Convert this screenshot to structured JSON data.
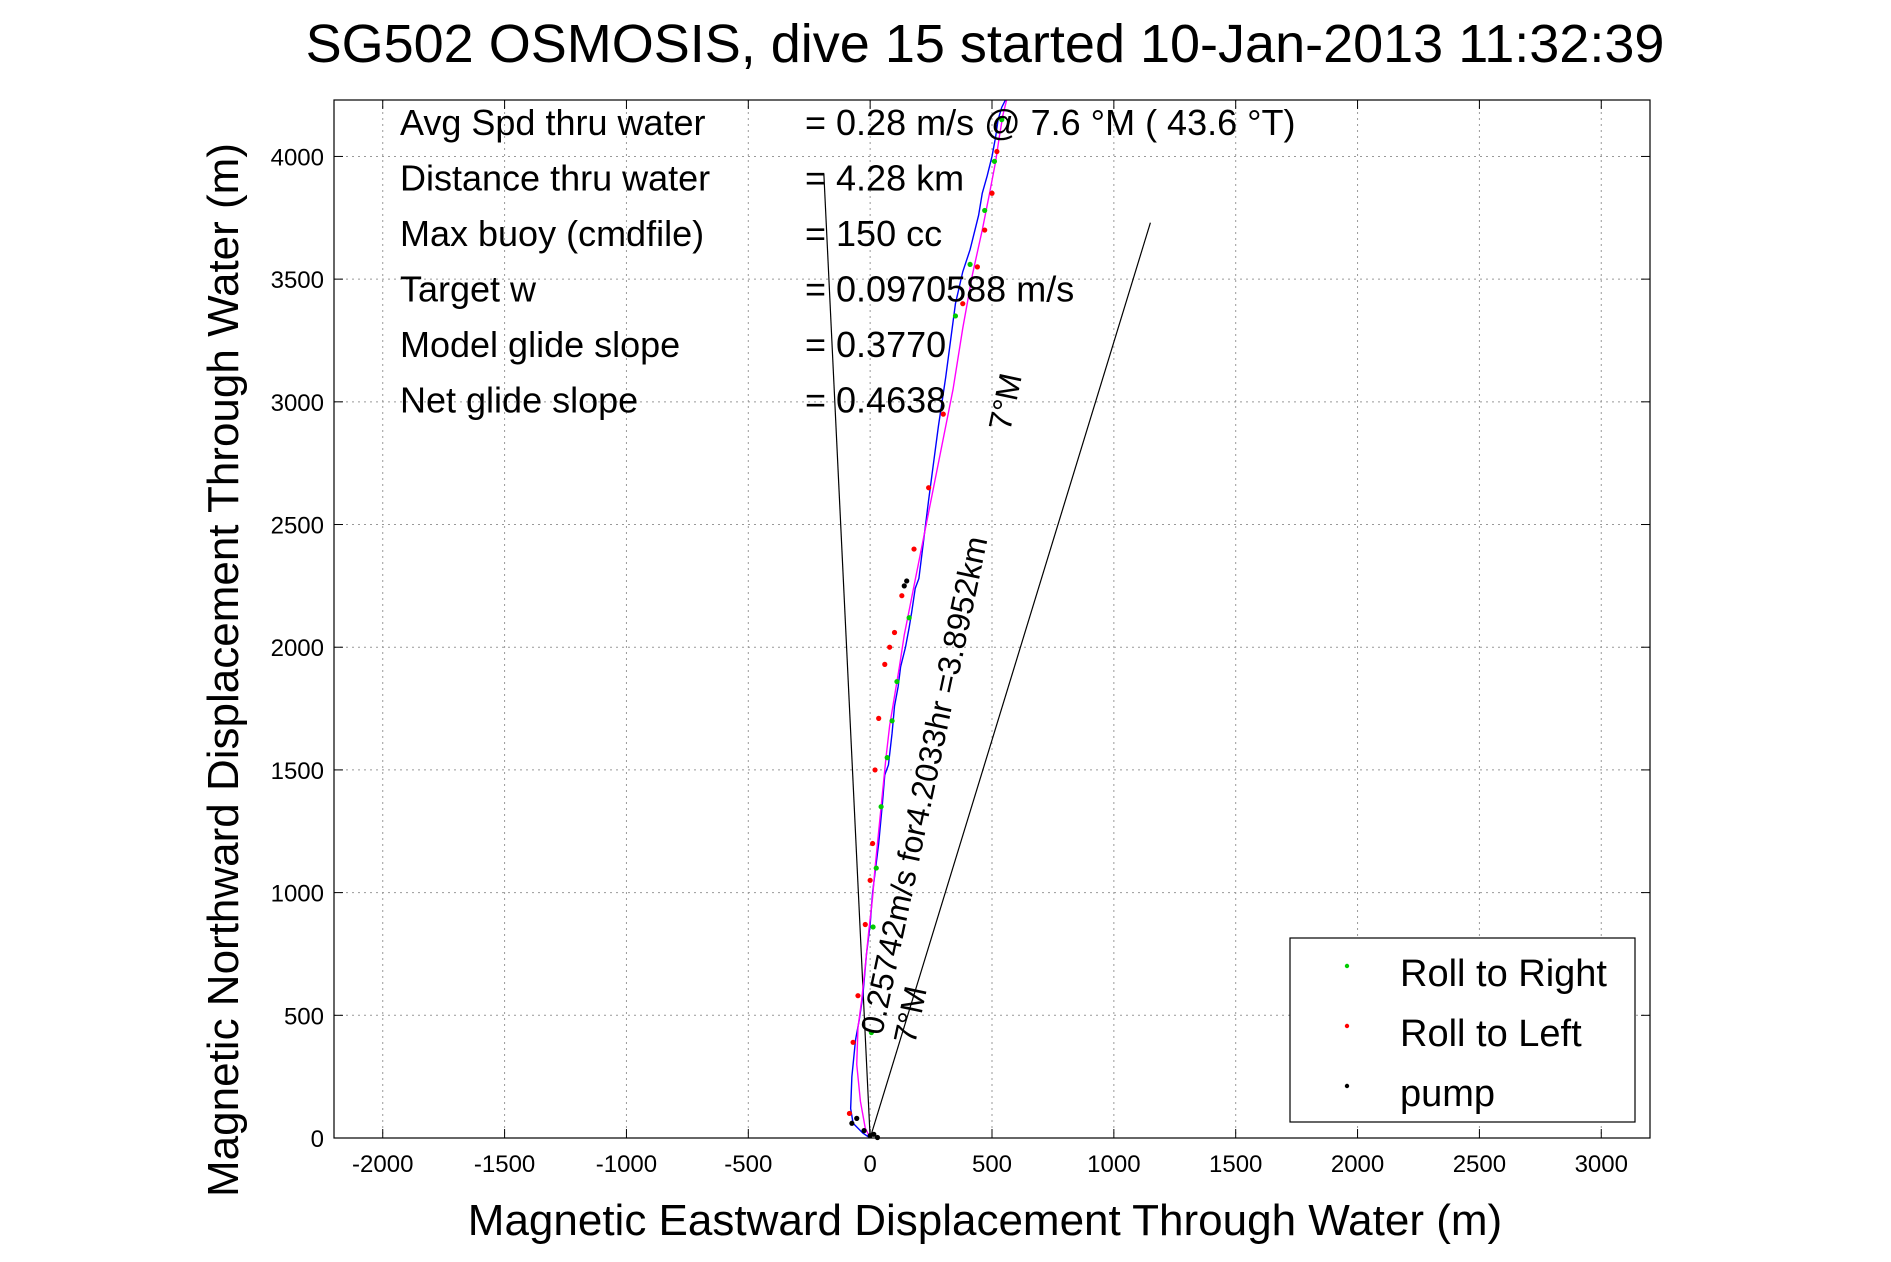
{
  "chart_data": {
    "type": "line",
    "title": "SG502 OSMOSIS, dive 15 started 10-Jan-2013 11:32:39",
    "xlabel": "Magnetic Eastward Displacement Through Water (m)",
    "ylabel": "Magnetic Northward Displacement Through Water (m)",
    "xlim": [
      -2200,
      3200
    ],
    "ylim": [
      0,
      4230
    ],
    "xticks": [
      -2000,
      -1500,
      -1000,
      -500,
      0,
      500,
      1000,
      1500,
      2000,
      2500,
      3000
    ],
    "yticks": [
      0,
      500,
      1000,
      1500,
      2000,
      2500,
      3000,
      3500,
      4000
    ],
    "grid": true,
    "legend_position": "bottom-right",
    "legend": [
      {
        "label": "Roll to Right",
        "color": "#00cc00"
      },
      {
        "label": "Roll to Left",
        "color": "#ff0000"
      },
      {
        "label": "pump",
        "color": "#000000"
      }
    ],
    "stats": [
      {
        "label": "Avg Spd thru water",
        "value": "=  0.28 m/s @   7.6 °M ( 43.6 °T)"
      },
      {
        "label": "Distance thru water",
        "value": "=  4.28 km"
      },
      {
        "label": "Max buoy (cmdfile)",
        "value": "= 150 cc"
      },
      {
        "label": "Target w",
        "value": "= 0.0970588 m/s"
      },
      {
        "label": "Model glide slope",
        "value": "= 0.3770"
      },
      {
        "label": "Net glide slope",
        "value": "= 0.4638"
      }
    ],
    "annotations": {
      "current_label": "0.25742m/s for4.2033hr =3.8952km",
      "heading_label_top": "7°M",
      "heading_label_bottom": "7°M"
    },
    "series": [
      {
        "name": "track",
        "color": "#0000ff",
        "x": [
          0,
          -30,
          -70,
          -80,
          -75,
          -60,
          -45,
          -30,
          -15,
          0,
          10,
          25,
          35,
          50,
          60,
          75,
          90,
          100,
          115,
          125,
          145,
          160,
          170,
          185,
          200,
          215,
          240,
          260,
          280,
          310,
          330,
          350,
          380,
          410,
          430,
          445,
          460,
          480,
          500,
          515,
          525,
          540,
          555
        ],
        "y": [
          0,
          20,
          60,
          120,
          250,
          400,
          480,
          580,
          750,
          870,
          1000,
          1120,
          1200,
          1360,
          1480,
          1520,
          1650,
          1760,
          1840,
          1920,
          2000,
          2080,
          2140,
          2240,
          2280,
          2400,
          2600,
          2750,
          2900,
          3100,
          3250,
          3400,
          3530,
          3620,
          3700,
          3760,
          3850,
          3920,
          4000,
          4080,
          4150,
          4200,
          4230
        ]
      },
      {
        "name": "track-alt",
        "color": "#ff00ff",
        "x": [
          0,
          -20,
          -40,
          -55,
          -50,
          -35,
          -20,
          -5,
          10,
          20,
          35,
          50,
          65,
          80,
          100,
          120,
          140,
          170,
          200,
          240,
          290,
          340,
          380,
          420,
          460,
          490,
          515,
          530,
          545,
          560
        ],
        "y": [
          0,
          40,
          150,
          300,
          450,
          560,
          700,
          850,
          980,
          1100,
          1250,
          1400,
          1550,
          1680,
          1800,
          1920,
          2050,
          2200,
          2350,
          2550,
          2800,
          3050,
          3300,
          3520,
          3700,
          3850,
          3980,
          4080,
          4170,
          4230
        ]
      }
    ],
    "markers": {
      "roll_right": {
        "x": [
          5,
          12,
          25,
          45,
          70,
          90,
          110,
          160,
          350,
          410,
          470,
          510,
          540
        ],
        "y": [
          430,
          860,
          1100,
          1350,
          1550,
          1700,
          1860,
          2120,
          3350,
          3560,
          3780,
          3980,
          4150
        ]
      },
      "roll_left": {
        "x": [
          -85,
          -70,
          -50,
          -20,
          0,
          10,
          20,
          35,
          60,
          80,
          100,
          130,
          180,
          240,
          300,
          380,
          440,
          470,
          500,
          520
        ],
        "y": [
          100,
          390,
          580,
          870,
          1050,
          1200,
          1500,
          1710,
          1930,
          2000,
          2060,
          2210,
          2400,
          2650,
          2950,
          3400,
          3550,
          3700,
          3850,
          4020
        ]
      },
      "pump": {
        "x": [
          -75,
          -55,
          -25,
          0,
          15,
          30,
          140,
          150
        ],
        "y": [
          60,
          80,
          30,
          10,
          15,
          2,
          2250,
          2270
        ]
      }
    },
    "current_lines": [
      {
        "x": [
          0,
          -190
        ],
        "y": [
          0,
          3930
        ],
        "color": "#000000"
      },
      {
        "x": [
          0,
          1150
        ],
        "y": [
          0,
          3730
        ],
        "color": "#000000"
      }
    ]
  }
}
